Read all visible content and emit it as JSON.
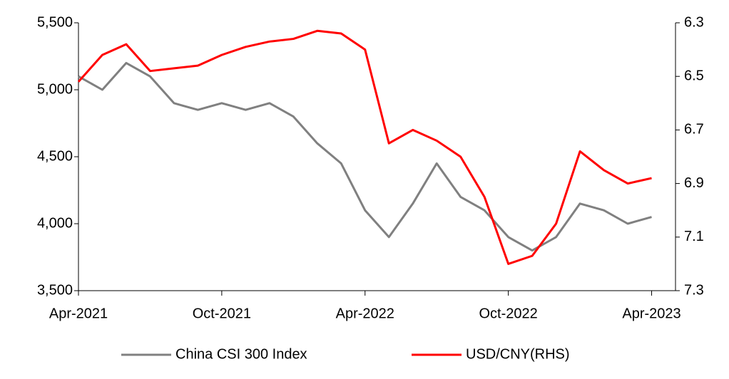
{
  "chart_data": {
    "type": "line",
    "x": [
      "2021-04",
      "2021-05",
      "2021-06",
      "2021-07",
      "2021-08",
      "2021-09",
      "2021-10",
      "2021-11",
      "2021-12",
      "2022-01",
      "2022-02",
      "2022-03",
      "2022-04",
      "2022-05",
      "2022-06",
      "2022-07",
      "2022-08",
      "2022-09",
      "2022-10",
      "2022-11",
      "2022-12",
      "2023-01",
      "2023-02",
      "2023-03",
      "2023-04"
    ],
    "xlim": [
      "2021-04",
      "2023-05"
    ],
    "xticks": [
      {
        "value": "2021-04",
        "label": "Apr-2021"
      },
      {
        "value": "2021-10",
        "label": "Oct-2021"
      },
      {
        "value": "2022-04",
        "label": "Apr-2022"
      },
      {
        "value": "2022-10",
        "label": "Oct-2022"
      },
      {
        "value": "2023-04",
        "label": "Apr-2023"
      }
    ],
    "ylim": [
      3500,
      5500
    ],
    "yticks": [
      {
        "value": 3500,
        "label": "3,500"
      },
      {
        "value": 4000,
        "label": "4,000"
      },
      {
        "value": 4500,
        "label": "4,500"
      },
      {
        "value": 5000,
        "label": "5,000"
      },
      {
        "value": 5500,
        "label": "5,500"
      }
    ],
    "y2lim": [
      7.3,
      6.3
    ],
    "y2ticks": [
      6.3,
      6.5,
      6.7,
      6.9,
      7.1,
      7.3
    ],
    "series": [
      {
        "name": "China CSI 300 Index",
        "color": "#808080",
        "values": [
          5100,
          5000,
          5200,
          5100,
          4900,
          4850,
          4900,
          4850,
          4900,
          4800,
          4600,
          4450,
          4100,
          3900,
          4150,
          4450,
          4200,
          4100,
          3900,
          3800,
          3900,
          4150,
          4100,
          4000,
          4050
        ]
      },
      {
        "name": "USD/CNY(RHS)",
        "color": "#ff0000",
        "axis": "y2",
        "values": [
          6.52,
          6.42,
          6.38,
          6.48,
          6.47,
          6.46,
          6.42,
          6.39,
          6.37,
          6.36,
          6.33,
          6.34,
          6.4,
          6.75,
          6.7,
          6.74,
          6.8,
          6.95,
          7.2,
          7.17,
          7.05,
          6.78,
          6.85,
          6.9,
          6.88
        ]
      }
    ]
  }
}
